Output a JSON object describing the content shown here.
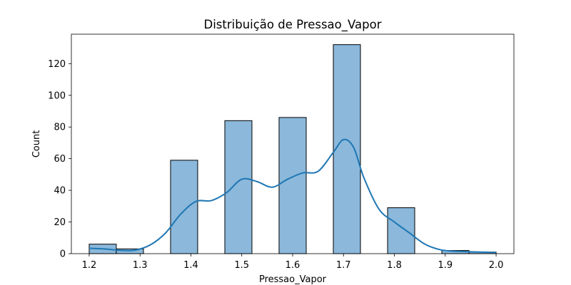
{
  "chart_data": {
    "type": "bar",
    "title": "Distribuição de Pressao_Vapor",
    "xlabel": "Pressao_Vapor",
    "ylabel": "Count",
    "xlim": [
      1.165,
      2.035
    ],
    "ylim": [
      0,
      138.6
    ],
    "xticks": [
      "1.2",
      "1.3",
      "1.4",
      "1.5",
      "1.6",
      "1.7",
      "1.8",
      "1.9",
      "2.0"
    ],
    "yticks": [
      "0",
      "20",
      "40",
      "60",
      "80",
      "100",
      "120"
    ],
    "grid": false,
    "bar_color": "#8bb8db",
    "bar_edge_color": "#000000",
    "kde_color": "#1f77b4",
    "series": [
      {
        "bins": [
          {
            "x0": 1.2,
            "x1": 1.2533,
            "count": 6
          },
          {
            "x0": 1.2533,
            "x1": 1.3067,
            "count": 3
          },
          {
            "x0": 1.3067,
            "x1": 1.36,
            "count": 0
          },
          {
            "x0": 1.36,
            "x1": 1.4133,
            "count": 59
          },
          {
            "x0": 1.4133,
            "x1": 1.4667,
            "count": 0
          },
          {
            "x0": 1.4667,
            "x1": 1.52,
            "count": 84
          },
          {
            "x0": 1.52,
            "x1": 1.5733,
            "count": 0
          },
          {
            "x0": 1.5733,
            "x1": 1.6267,
            "count": 86
          },
          {
            "x0": 1.6267,
            "x1": 1.68,
            "count": 0
          },
          {
            "x0": 1.68,
            "x1": 1.7333,
            "count": 132
          },
          {
            "x0": 1.7333,
            "x1": 1.7867,
            "count": 0
          },
          {
            "x0": 1.7867,
            "x1": 1.84,
            "count": 29
          },
          {
            "x0": 1.84,
            "x1": 1.8933,
            "count": 0
          },
          {
            "x0": 1.8933,
            "x1": 1.9467,
            "count": 2
          },
          {
            "x0": 1.9467,
            "x1": 2.0,
            "count": 1
          }
        ],
        "kde": [
          [
            1.2,
            3.4
          ],
          [
            1.23,
            3.0
          ],
          [
            1.26,
            2.1
          ],
          [
            1.29,
            2.2
          ],
          [
            1.32,
            5.5
          ],
          [
            1.35,
            13
          ],
          [
            1.38,
            25
          ],
          [
            1.41,
            33
          ],
          [
            1.44,
            33.5
          ],
          [
            1.47,
            38.5
          ],
          [
            1.5,
            47
          ],
          [
            1.53,
            45.5
          ],
          [
            1.56,
            42
          ],
          [
            1.59,
            47
          ],
          [
            1.62,
            51
          ],
          [
            1.65,
            52
          ],
          [
            1.68,
            64
          ],
          [
            1.7,
            72
          ],
          [
            1.72,
            67
          ],
          [
            1.74,
            48
          ],
          [
            1.77,
            28
          ],
          [
            1.8,
            20
          ],
          [
            1.83,
            13
          ],
          [
            1.86,
            6
          ],
          [
            1.89,
            2.5
          ],
          [
            1.92,
            1.5
          ],
          [
            1.95,
            1.2
          ],
          [
            1.98,
            0.9
          ],
          [
            2.0,
            0.8
          ]
        ]
      }
    ]
  }
}
